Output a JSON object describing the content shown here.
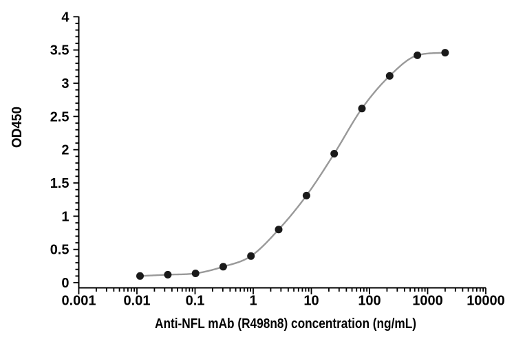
{
  "chart_data": {
    "type": "scatter",
    "title": "",
    "xlabel": "Anti-NFL mAb (R498n8) concentration (ng/mL)",
    "ylabel": "OD450",
    "x_scale": "log",
    "xlim": [
      0.001,
      10000
    ],
    "ylim": [
      0,
      4
    ],
    "x_tick_labels": [
      "0.001",
      "0.01",
      "0.1",
      "1",
      "10",
      "100",
      "1000",
      "10000"
    ],
    "y_tick_labels": [
      "0",
      "0.5",
      "1",
      "1.5",
      "2",
      "2.5",
      "3",
      "3.5",
      "4"
    ],
    "y_major_step": 0.5,
    "y_minor_step": 0.1,
    "grid": false,
    "legend": false,
    "series": [
      {
        "name": "Anti-NFL mAb (R498n8)",
        "x": [
          0.0113,
          0.034,
          0.102,
          0.305,
          0.914,
          2.74,
          8.23,
          24.7,
          74.1,
          222,
          667,
          2000
        ],
        "y": [
          0.1,
          0.12,
          0.14,
          0.24,
          0.4,
          0.8,
          1.31,
          1.94,
          2.62,
          3.11,
          3.42,
          3.46
        ]
      }
    ],
    "colors": {
      "curve": "#999999",
      "marker": "#1a1a1a",
      "axis": "#000000",
      "text": "#000000",
      "background": "#ffffff"
    }
  }
}
